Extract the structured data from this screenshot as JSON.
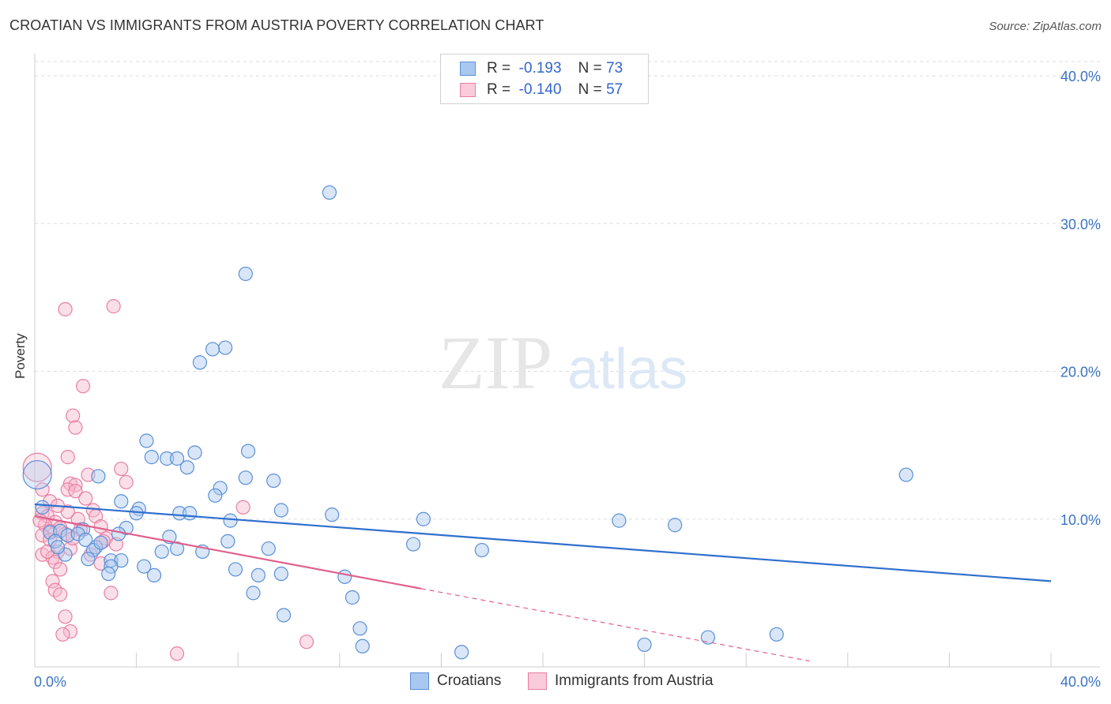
{
  "header": {
    "title": "CROATIAN VS IMMIGRANTS FROM AUSTRIA POVERTY CORRELATION CHART",
    "source": "Source: ZipAtlas.com"
  },
  "legend": {
    "rows": [
      {
        "r_label": "R =",
        "r_value": "-0.193",
        "n_label": "N =",
        "n_value": "73"
      },
      {
        "r_label": "R =",
        "r_value": "-0.140",
        "n_label": "N =",
        "n_value": "57"
      }
    ]
  },
  "watermark": {
    "zip": "ZIP",
    "atlas": "atlas"
  },
  "colors": {
    "croatians_fill": "#a9c8f0",
    "croatians_stroke": "#5b8fd6",
    "croatians_line": "#2f6fce",
    "austria_fill": "#f6b8cc",
    "austria_stroke": "#e87fa3",
    "austria_line": "#e0608d",
    "tick_label": "#3b74c4",
    "grid": "#dddddd"
  },
  "chart_data": {
    "type": "scatter",
    "title": "CROATIAN VS IMMIGRANTS FROM AUSTRIA POVERTY CORRELATION CHART",
    "xlabel": "",
    "ylabel": "Poverty",
    "xlim": [
      0,
      40
    ],
    "ylim": [
      0,
      40
    ],
    "x_tick_labels": [
      "0.0%",
      "40.0%"
    ],
    "y_tick_labels": [
      "10.0%",
      "20.0%",
      "30.0%",
      "40.0%"
    ],
    "y_ticks": [
      10,
      20,
      30,
      40
    ],
    "grid": true,
    "legend_position": "top-center",
    "series": [
      {
        "name": "Croatians",
        "trend": {
          "x0": 0,
          "y0": 11.0,
          "x1": 40,
          "y1": 5.8,
          "dashed_extension": false
        },
        "points": [
          [
            11.6,
            32.1
          ],
          [
            8.3,
            26.6
          ],
          [
            7.5,
            21.6
          ],
          [
            7.0,
            21.5
          ],
          [
            6.5,
            20.6
          ],
          [
            34.3,
            13.0
          ],
          [
            4.4,
            15.3
          ],
          [
            8.4,
            14.6
          ],
          [
            6.3,
            14.5
          ],
          [
            4.6,
            14.2
          ],
          [
            5.2,
            14.1
          ],
          [
            5.6,
            14.1
          ],
          [
            6.0,
            13.5
          ],
          [
            2.5,
            12.9
          ],
          [
            8.3,
            12.8
          ],
          [
            9.4,
            12.6
          ],
          [
            7.3,
            12.1
          ],
          [
            7.1,
            11.6
          ],
          [
            3.4,
            11.2
          ],
          [
            0.3,
            10.8
          ],
          [
            4.1,
            10.7
          ],
          [
            4.0,
            10.4
          ],
          [
            5.7,
            10.4
          ],
          [
            6.1,
            10.4
          ],
          [
            9.7,
            10.6
          ],
          [
            11.7,
            10.3
          ],
          [
            15.3,
            10.0
          ],
          [
            23.0,
            9.9
          ],
          [
            25.2,
            9.6
          ],
          [
            7.7,
            9.9
          ],
          [
            1.9,
            9.3
          ],
          [
            3.6,
            9.4
          ],
          [
            0.6,
            9.1
          ],
          [
            1.0,
            9.2
          ],
          [
            1.3,
            8.9
          ],
          [
            5.3,
            8.8
          ],
          [
            7.6,
            8.5
          ],
          [
            2.4,
            8.1
          ],
          [
            2.3,
            7.9
          ],
          [
            0.8,
            8.5
          ],
          [
            14.9,
            8.3
          ],
          [
            17.6,
            7.9
          ],
          [
            6.6,
            7.8
          ],
          [
            5.0,
            7.8
          ],
          [
            5.6,
            8.0
          ],
          [
            9.2,
            8.0
          ],
          [
            2.1,
            7.3
          ],
          [
            3.0,
            7.2
          ],
          [
            3.4,
            7.2
          ],
          [
            3.0,
            6.8
          ],
          [
            4.3,
            6.8
          ],
          [
            7.9,
            6.6
          ],
          [
            2.9,
            6.3
          ],
          [
            4.7,
            6.2
          ],
          [
            8.8,
            6.2
          ],
          [
            9.7,
            6.3
          ],
          [
            12.2,
            6.1
          ],
          [
            8.6,
            5.0
          ],
          [
            12.5,
            4.7
          ],
          [
            9.8,
            3.5
          ],
          [
            12.8,
            2.6
          ],
          [
            12.9,
            1.4
          ],
          [
            16.8,
            1.0
          ],
          [
            24.0,
            1.5
          ],
          [
            26.5,
            2.0
          ],
          [
            29.2,
            2.2
          ],
          [
            1.7,
            9.0
          ],
          [
            2.0,
            8.6
          ],
          [
            3.3,
            9.0
          ],
          [
            1.2,
            7.6
          ],
          [
            0.9,
            8.1
          ],
          [
            2.6,
            8.4
          ],
          [
            0.1,
            13.0
          ]
        ]
      },
      {
        "name": "Immigrants from Austria",
        "trend": {
          "x0": 0,
          "y0": 10.2,
          "x1": 15.2,
          "y1": 5.3,
          "dashed_to": [
            30.5,
            0.4
          ]
        },
        "points": [
          [
            3.1,
            24.4
          ],
          [
            1.2,
            24.2
          ],
          [
            1.9,
            19.0
          ],
          [
            1.5,
            17.0
          ],
          [
            1.6,
            16.2
          ],
          [
            1.3,
            14.2
          ],
          [
            3.4,
            13.4
          ],
          [
            2.1,
            13.0
          ],
          [
            3.6,
            12.5
          ],
          [
            1.4,
            12.4
          ],
          [
            1.6,
            12.3
          ],
          [
            1.3,
            12.0
          ],
          [
            0.3,
            12.0
          ],
          [
            1.6,
            11.9
          ],
          [
            2.0,
            11.4
          ],
          [
            0.6,
            11.2
          ],
          [
            8.2,
            10.8
          ],
          [
            2.3,
            10.6
          ],
          [
            1.3,
            10.5
          ],
          [
            0.3,
            10.4
          ],
          [
            0.5,
            10.2
          ],
          [
            1.7,
            10.0
          ],
          [
            0.8,
            9.8
          ],
          [
            0.4,
            9.6
          ],
          [
            1.0,
            9.4
          ],
          [
            0.6,
            9.2
          ],
          [
            0.3,
            8.9
          ],
          [
            2.8,
            8.7
          ],
          [
            2.7,
            8.5
          ],
          [
            3.2,
            8.3
          ],
          [
            1.4,
            8.0
          ],
          [
            0.9,
            7.8
          ],
          [
            2.2,
            7.6
          ],
          [
            0.3,
            7.6
          ],
          [
            0.7,
            7.4
          ],
          [
            0.8,
            7.1
          ],
          [
            2.6,
            7.0
          ],
          [
            1.0,
            6.6
          ],
          [
            0.7,
            5.8
          ],
          [
            0.8,
            5.2
          ],
          [
            3.0,
            5.0
          ],
          [
            1.0,
            4.9
          ],
          [
            1.2,
            3.4
          ],
          [
            1.4,
            2.4
          ],
          [
            1.1,
            2.2
          ],
          [
            10.7,
            1.7
          ],
          [
            5.6,
            0.9
          ],
          [
            0.6,
            8.6
          ],
          [
            1.8,
            9.3
          ],
          [
            0.2,
            9.9
          ],
          [
            0.9,
            10.9
          ],
          [
            1.2,
            9.0
          ],
          [
            2.4,
            10.2
          ],
          [
            0.5,
            7.8
          ],
          [
            1.5,
            8.7
          ],
          [
            2.6,
            9.5
          ],
          [
            0.1,
            13.5
          ]
        ]
      }
    ]
  }
}
